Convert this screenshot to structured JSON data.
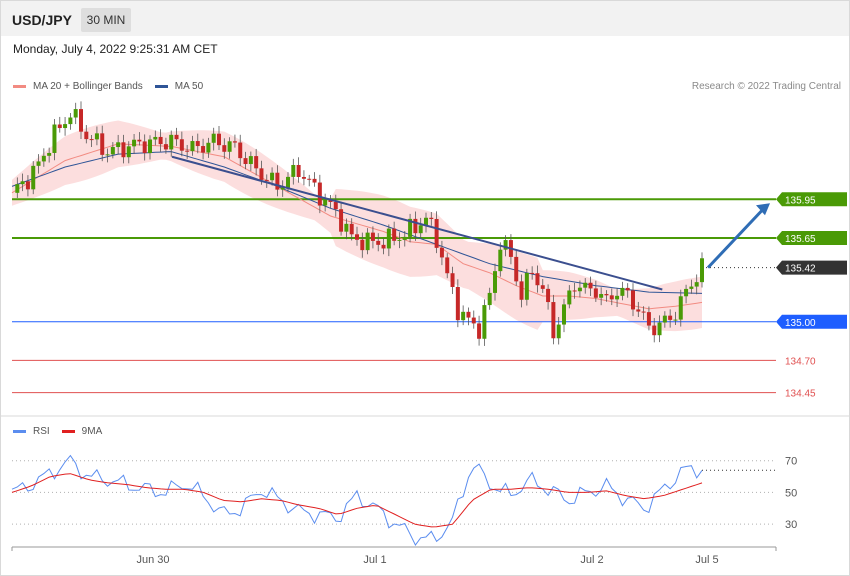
{
  "header": {
    "symbol": "USD/JPY",
    "timeframe": "30 MIN",
    "datetime": "Monday, July 4, 2022 9:25:31 AM CET"
  },
  "legend": [
    {
      "label": "MA 20 + Bollinger Bands",
      "color": "#f28b82"
    },
    {
      "label": "MA 50",
      "color": "#2f5597"
    }
  ],
  "credit": "Research © 2022 Trading Central",
  "rsi_legend": [
    {
      "label": "RSI",
      "color": "#5b8def"
    },
    {
      "label": "9MA",
      "color": "#e02020"
    }
  ],
  "colors": {
    "green": "#4a9a06",
    "blue": "#1e5eff",
    "red": "#e05050",
    "dark": "#333333",
    "arrow": "#2f6db5"
  },
  "chart_data": [
    {
      "type": "candlestick",
      "x_labels": [
        "Jun 30",
        "Jul 1",
        "Jul 2",
        "Jul 5"
      ],
      "ylim": [
        134.3,
        136.72
      ],
      "levels": [
        {
          "value": 135.95,
          "label": "135.95",
          "kind": "resistance",
          "color": "#4a9a06"
        },
        {
          "value": 135.65,
          "label": "135.65",
          "kind": "resistance",
          "color": "#4a9a06"
        },
        {
          "value": 135.42,
          "label": "135.42",
          "kind": "last",
          "color": "#333333"
        },
        {
          "value": 135.0,
          "label": "135.00",
          "kind": "pivot",
          "color": "#1e5eff"
        },
        {
          "value": 134.7,
          "label": "134.70",
          "kind": "support",
          "color": "#e05050"
        },
        {
          "value": 134.45,
          "label": "134.45",
          "kind": "support",
          "color": "#e05050"
        }
      ],
      "close_path": [
        [
          0,
          136.0
        ],
        [
          4,
          136.15
        ],
        [
          8,
          136.45
        ],
        [
          11,
          136.62
        ],
        [
          14,
          136.45
        ],
        [
          18,
          136.32
        ],
        [
          24,
          136.38
        ],
        [
          30,
          136.4
        ],
        [
          34,
          136.34
        ],
        [
          38,
          136.4
        ],
        [
          42,
          136.35
        ],
        [
          46,
          136.18
        ],
        [
          50,
          136.05
        ],
        [
          54,
          136.18
        ],
        [
          58,
          135.98
        ],
        [
          61,
          135.85
        ],
        [
          64,
          135.65
        ],
        [
          67,
          135.62
        ],
        [
          70,
          135.62
        ],
        [
          74,
          135.68
        ],
        [
          78,
          135.8
        ],
        [
          80,
          135.65
        ],
        [
          82,
          135.35
        ],
        [
          84,
          135.1
        ],
        [
          86,
          135.0
        ],
        [
          88,
          134.95
        ],
        [
          90,
          135.2
        ],
        [
          92,
          135.62
        ],
        [
          94,
          135.5
        ],
        [
          96,
          135.2
        ],
        [
          98,
          135.4
        ],
        [
          100,
          135.25
        ],
        [
          102,
          134.92
        ],
        [
          104,
          135.1
        ],
        [
          106,
          135.3
        ],
        [
          108,
          135.25
        ],
        [
          110,
          135.25
        ],
        [
          112,
          135.15
        ],
        [
          114,
          135.25
        ],
        [
          116,
          135.2
        ],
        [
          118,
          135.1
        ],
        [
          120,
          134.95
        ],
        [
          122,
          134.98
        ],
        [
          124,
          135.02
        ],
        [
          126,
          135.15
        ],
        [
          128,
          135.3
        ],
        [
          130,
          135.42
        ]
      ],
      "trendline": [
        [
          0,
          136.28
        ],
        [
          66,
          135.25
        ]
      ],
      "ma20": [
        [
          0,
          136.0
        ],
        [
          10,
          136.25
        ],
        [
          20,
          136.38
        ],
        [
          30,
          136.36
        ],
        [
          40,
          136.28
        ],
        [
          50,
          136.05
        ],
        [
          60,
          135.82
        ],
        [
          70,
          135.7
        ],
        [
          75,
          135.62
        ],
        [
          80,
          135.6
        ],
        [
          85,
          135.45
        ],
        [
          90,
          135.38
        ],
        [
          95,
          135.28
        ],
        [
          100,
          135.2
        ],
        [
          105,
          135.2
        ],
        [
          110,
          135.18
        ],
        [
          115,
          135.14
        ],
        [
          120,
          135.1
        ],
        [
          125,
          135.12
        ],
        [
          130,
          135.15
        ]
      ],
      "ma50": [
        [
          0,
          136.05
        ],
        [
          10,
          136.2
        ],
        [
          20,
          136.3
        ],
        [
          30,
          136.32
        ],
        [
          40,
          136.2
        ],
        [
          50,
          136.05
        ],
        [
          60,
          135.88
        ],
        [
          70,
          135.75
        ],
        [
          80,
          135.6
        ],
        [
          90,
          135.45
        ],
        [
          100,
          135.35
        ],
        [
          110,
          135.28
        ],
        [
          120,
          135.23
        ],
        [
          130,
          135.22
        ]
      ],
      "projection_arrow": {
        "from": 135.42,
        "to": 135.95
      }
    },
    {
      "type": "line",
      "ylim": [
        20,
        78
      ],
      "y_ticks": [
        70,
        50,
        30
      ],
      "series": [
        {
          "name": "RSI",
          "values": [
            50,
            55,
            62,
            70,
            60,
            58,
            55,
            52,
            50,
            56,
            48,
            36,
            40,
            52,
            45,
            38,
            36,
            34,
            48,
            40,
            30,
            22,
            20,
            32,
            68,
            55,
            48,
            58,
            52,
            45,
            50,
            54,
            46,
            40,
            52,
            64,
            65
          ]
        },
        {
          "name": "9MA",
          "values": [
            50,
            54,
            60,
            62,
            58,
            56,
            55,
            53,
            52,
            52,
            50,
            45,
            44,
            46,
            45,
            42,
            40,
            36,
            40,
            42,
            36,
            30,
            28,
            30,
            45,
            52,
            52,
            53,
            52,
            50,
            50,
            51,
            48,
            46,
            48,
            52,
            56
          ]
        }
      ]
    }
  ]
}
